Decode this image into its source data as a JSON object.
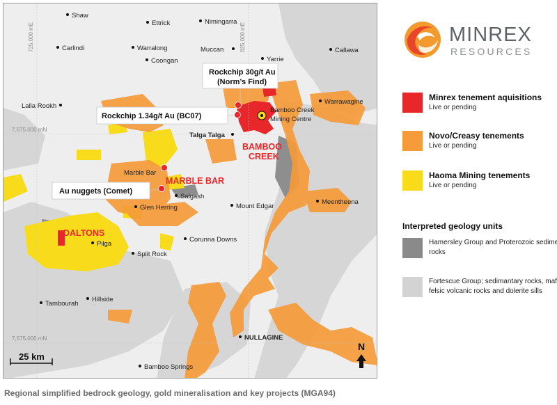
{
  "map": {
    "towns": {
      "shaw": "Shaw",
      "ettrick": "Ettrick",
      "nimingarra": "Nimingarra",
      "carlindi": "Carlindi",
      "warralong": "Warralong",
      "muccan": "Muccan",
      "yarrie": "Yarrie",
      "callawa": "Callawa",
      "coongan": "Coongan",
      "lalla_rookh": "Lalla Rookh",
      "warrawagine": "Warrawagine",
      "bamboo_creek_mc": [
        "Bamboo Creek",
        "Mining Centre"
      ],
      "talga_talga": "Talga Talga",
      "marble_bar": "Marble Bar",
      "salgash": "Salgash",
      "glen_herring": "Glen Herring",
      "mount_edgar": "Mount Edgar",
      "meentheena": "Meentheena",
      "pilga": "Pilga",
      "corunna_downs": "Corunna Downs",
      "split_rock": "Split Rock",
      "hillside": "Hillside",
      "tambourah": "Tambourah",
      "nullagine": "NULLAGINE",
      "bamboo_springs": "Bamboo Springs"
    },
    "projects": {
      "bamboo_creek": [
        "BAMBOO",
        "CREEK"
      ],
      "marble_bar": "MARBLE BAR",
      "daltons": "DALTONS"
    },
    "callouts": {
      "norms_find": [
        "Rockchip 30g/t Au",
        "(Norm’s Find)"
      ],
      "bc07": "Rockchip 1.34g/t Au (BC07)",
      "comet": "Au nuggets (Comet)"
    },
    "coords": {
      "e725": "725,000 mE",
      "e825": "825,000 mE",
      "n7675": "7,675,000 mN",
      "n7575": "7,575,000 mN"
    },
    "scale_label": "25 km",
    "north_label": "N"
  },
  "logo": {
    "name": "MINREX",
    "subtitle": "RESOURCES"
  },
  "legend": {
    "items": [
      {
        "title": "Minrex tenement aquisitions",
        "subtitle": "Live or pending",
        "color": "#e8272a"
      },
      {
        "title": "Novo/Creasy tenements",
        "subtitle": "Live or pending",
        "color": "#f59b3a"
      },
      {
        "title": "Haoma Mining tenements",
        "subtitle": "Live or pending",
        "color": "#f8dc1c"
      }
    ],
    "geology_heading": "Interpreted geology units",
    "geology": [
      {
        "label": "Hamersley Group and Proterozoic sedimentary rocks",
        "color": "#8a8a8a"
      },
      {
        "label": "Fortescue Group; sedimantary rocks, mafic and felsic volcanic rocks and dolerite sills",
        "color": "#d3d3d3"
      }
    ]
  },
  "caption": "Regional simplified bedrock geology, gold mineralisation and key projects (MGA94)"
}
